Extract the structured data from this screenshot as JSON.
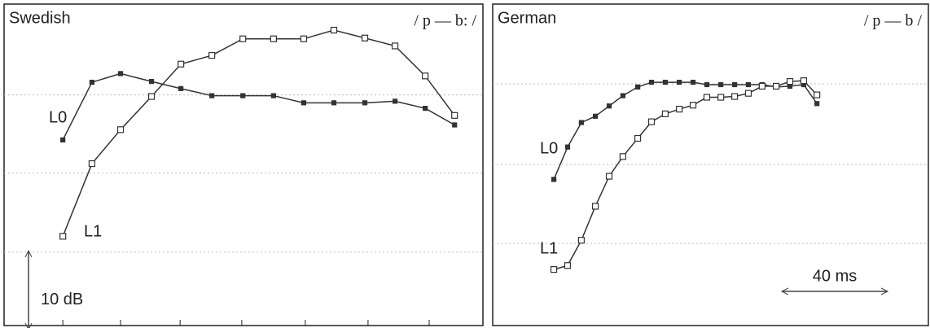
{
  "chart_data": [
    {
      "type": "line",
      "title": "Swedish",
      "subtitle": "/ p — b: /",
      "xlim": [
        0,
        180.9
      ],
      "ylim": [
        0,
        40.7
      ],
      "gridlines": [
        29.2,
        19.3,
        9.3
      ],
      "xtick_marks": [
        22.2,
        44,
        66.5,
        89.8,
        113.8,
        137.5,
        160.6
      ],
      "y_scale_bar": {
        "value": 10,
        "label": "10 dB"
      },
      "series": [
        {
          "name": "L0",
          "color": "#333333",
          "marker": "filled",
          "x": [
            22.2,
            33.2,
            44,
            55.7,
            66.8,
            78.5,
            90.2,
            101.8,
            113.2,
            124.6,
            136.3,
            147.7,
            159.1,
            170.2
          ],
          "values": [
            23.5,
            30.8,
            31.9,
            30.9,
            30.0,
            29.1,
            29.1,
            29.1,
            28.2,
            28.2,
            28.2,
            28.4,
            27.5,
            25.4
          ]
        },
        {
          "name": "L1",
          "color": "#333333",
          "marker": "open",
          "x": [
            22.2,
            33.2,
            44,
            55.7,
            66.8,
            78.5,
            90.2,
            101.8,
            113.2,
            124.6,
            136.3,
            147.7,
            159.1,
            170.2
          ],
          "values": [
            11.3,
            20.5,
            24.8,
            29.0,
            33.1,
            34.2,
            36.3,
            36.3,
            36.3,
            37.4,
            36.4,
            35.4,
            31.6,
            26.6
          ]
        }
      ]
    },
    {
      "type": "line",
      "title": "German",
      "subtitle": "/ p — b /",
      "xlim": [
        0,
        164.6
      ],
      "ylim": [
        0,
        40.7
      ],
      "gridlines": [
        30.6,
        20.4,
        10.4
      ],
      "x_scale_bar": {
        "value": 40,
        "label": "40 ms"
      },
      "series": [
        {
          "name": "L0",
          "color": "#333333",
          "marker": "filled",
          "x": [
            23.1,
            28.3,
            33.5,
            38.8,
            44.0,
            49.2,
            54.8,
            60.0,
            65.2,
            70.5,
            75.7,
            80.9,
            86.2,
            91.4,
            96.6,
            101.8,
            107.1,
            112.3,
            117.5,
            122.5
          ],
          "values": [
            18.5,
            22.6,
            25.7,
            26.5,
            27.8,
            29.1,
            30.2,
            30.8,
            30.8,
            30.8,
            30.8,
            30.5,
            30.5,
            30.5,
            30.5,
            30.5,
            30.2,
            30.3,
            30.5,
            28.1
          ]
        },
        {
          "name": "L1",
          "color": "#333333",
          "marker": "open",
          "x": [
            23.1,
            28.3,
            33.5,
            38.8,
            44.0,
            49.2,
            54.8,
            60.0,
            65.2,
            70.5,
            75.7,
            80.9,
            86.2,
            91.4,
            96.6,
            101.8,
            107.1,
            112.3,
            117.5,
            122.5
          ],
          "values": [
            7.1,
            7.6,
            10.8,
            15.1,
            18.9,
            21.4,
            23.7,
            25.8,
            26.8,
            27.4,
            27.9,
            28.9,
            28.9,
            29.0,
            29.4,
            30.3,
            30.3,
            30.9,
            31.0,
            29.2
          ]
        }
      ]
    }
  ]
}
